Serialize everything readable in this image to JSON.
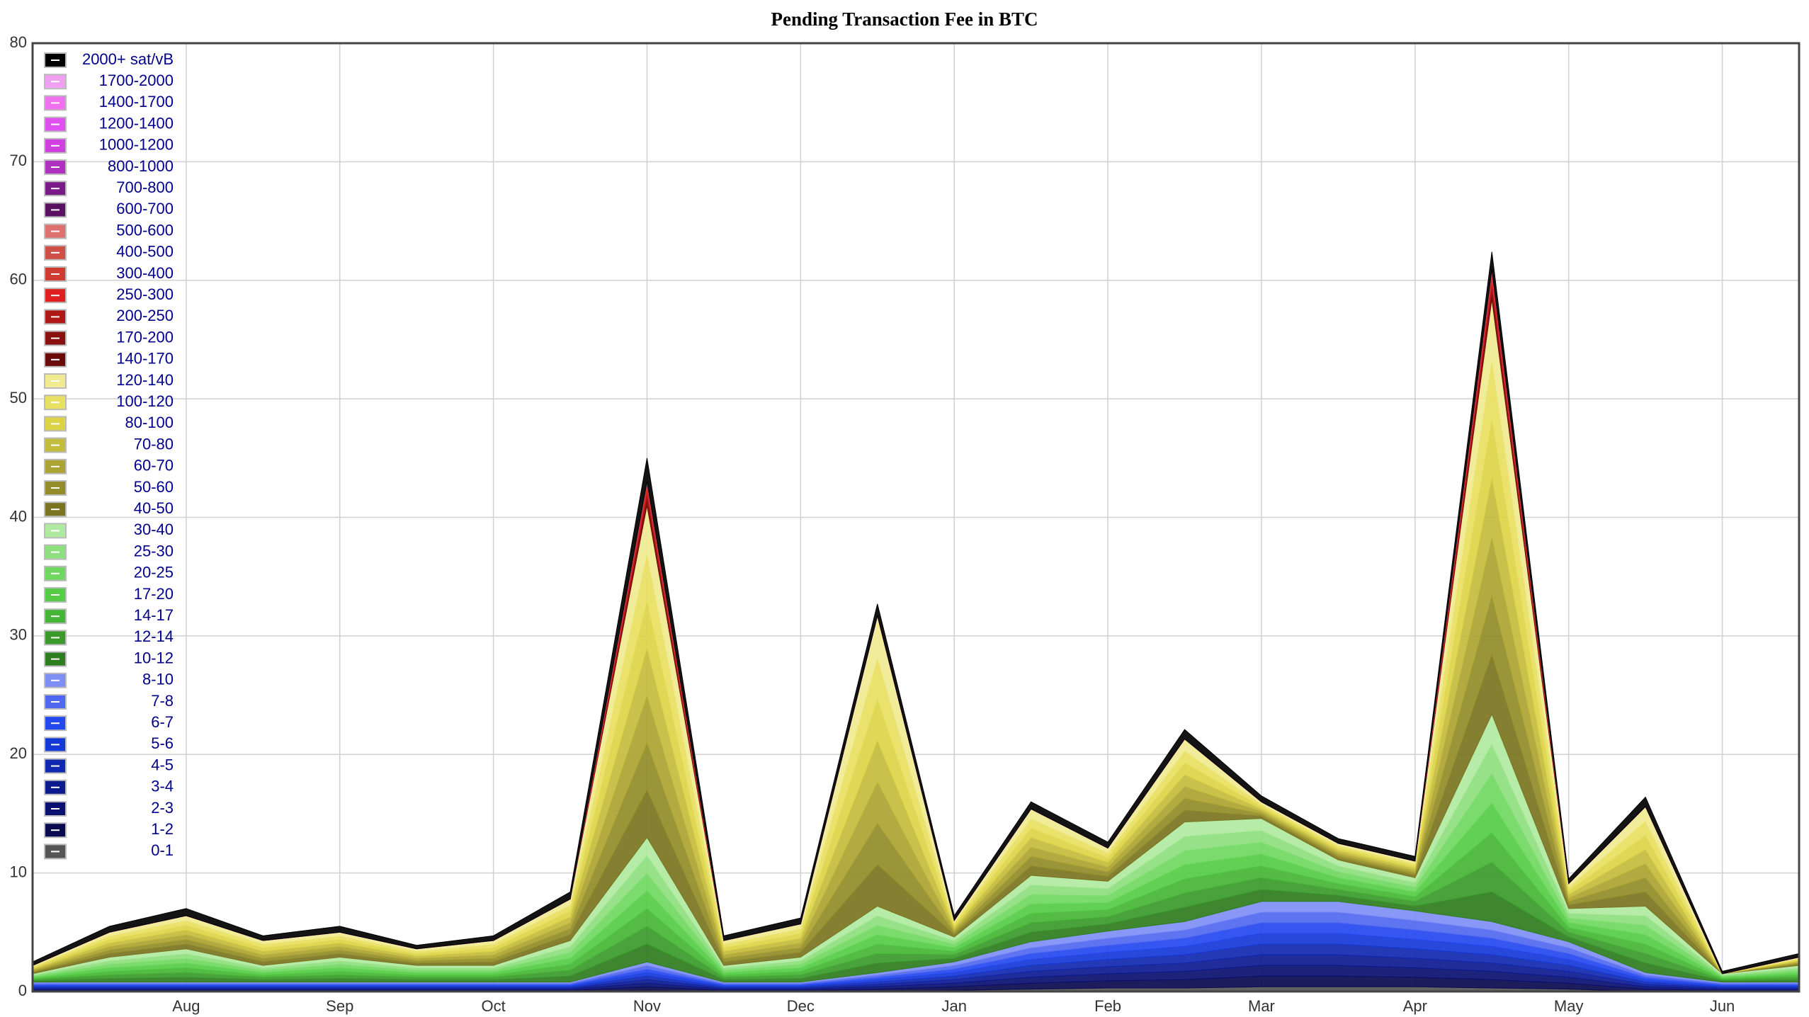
{
  "chart_data": {
    "type": "stacked-area",
    "title": "Pending Transaction Fee in BTC",
    "categories": [
      null,
      null,
      "Aug",
      null,
      "Sep",
      null,
      "Oct",
      null,
      "Nov",
      null,
      "Dec",
      null,
      "Jan",
      null,
      "Feb",
      null,
      "Mar",
      null,
      "Apr",
      null,
      "May",
      null,
      "Jun",
      null
    ],
    "ylim": [
      0,
      80
    ],
    "yticks": [
      0,
      10,
      20,
      30,
      40,
      50,
      60,
      70,
      80
    ],
    "grid": true,
    "legend": "top-left",
    "series": [
      {
        "name": "2000+ sat/vB",
        "color": "#000000",
        "values": [
          0.3,
          0.5,
          0.6,
          0.4,
          0.5,
          0.3,
          0.4,
          0.6,
          2,
          0.4,
          0.5,
          1,
          0.4,
          0.6,
          0.5,
          0.8,
          0.5,
          0.4,
          0.4,
          1.5,
          0.4,
          0.8,
          0.2,
          0.3
        ]
      },
      {
        "name": "1700-2000",
        "color": "#f0a0f0",
        "values": [
          0,
          0,
          0,
          0,
          0,
          0,
          0,
          0,
          0,
          0,
          0,
          0,
          0,
          0,
          0,
          0,
          0,
          0,
          0,
          0,
          0,
          0,
          0,
          0
        ]
      },
      {
        "name": "1400-1700",
        "color": "#f070f0",
        "values": [
          0,
          0,
          0,
          0,
          0,
          0,
          0,
          0,
          0,
          0,
          0,
          0,
          0,
          0,
          0,
          0,
          0,
          0,
          0,
          0,
          0,
          0,
          0,
          0
        ]
      },
      {
        "name": "1200-1400",
        "color": "#e050f0",
        "values": [
          0,
          0,
          0,
          0,
          0,
          0,
          0,
          0,
          0,
          0,
          0,
          0,
          0,
          0,
          0,
          0,
          0,
          0,
          0,
          0,
          0,
          0,
          0,
          0
        ]
      },
      {
        "name": "1000-1200",
        "color": "#d040e0",
        "values": [
          0,
          0,
          0,
          0,
          0,
          0,
          0,
          0,
          0,
          0,
          0,
          0,
          0,
          0,
          0,
          0,
          0,
          0,
          0,
          0,
          0,
          0,
          0,
          0
        ]
      },
      {
        "name": "800-1000",
        "color": "#b030c0",
        "values": [
          0,
          0,
          0,
          0,
          0,
          0,
          0,
          0,
          0,
          0,
          0,
          0,
          0,
          0,
          0,
          0,
          0,
          0,
          0,
          0,
          0,
          0,
          0,
          0
        ]
      },
      {
        "name": "700-800",
        "color": "#7a1a88",
        "values": [
          0,
          0,
          0,
          0,
          0,
          0,
          0,
          0,
          0,
          0,
          0,
          0,
          0,
          0,
          0,
          0,
          0,
          0,
          0,
          0,
          0,
          0,
          0,
          0
        ]
      },
      {
        "name": "600-700",
        "color": "#5a1060",
        "values": [
          0,
          0,
          0,
          0,
          0,
          0,
          0,
          0,
          0,
          0,
          0,
          0,
          0,
          0,
          0,
          0,
          0,
          0,
          0,
          0,
          0,
          0,
          0,
          0
        ]
      },
      {
        "name": "500-600",
        "color": "#e07070",
        "values": [
          0,
          0,
          0,
          0,
          0,
          0,
          0,
          0,
          0,
          0,
          0,
          0,
          0,
          0,
          0,
          0,
          0,
          0,
          0,
          0,
          0,
          0,
          0,
          0
        ]
      },
      {
        "name": "400-500",
        "color": "#d04e48",
        "values": [
          0,
          0,
          0,
          0,
          0,
          0,
          0,
          0,
          0,
          0,
          0,
          0,
          0,
          0,
          0,
          0,
          0,
          0,
          0,
          0,
          0,
          0,
          0,
          0
        ]
      },
      {
        "name": "300-400",
        "color": "#d03a30",
        "values": [
          0,
          0,
          0,
          0,
          0,
          0,
          0,
          0,
          0.4,
          0,
          0,
          0,
          0,
          0,
          0,
          0,
          0,
          0,
          0,
          0.5,
          0,
          0,
          0,
          0
        ]
      },
      {
        "name": "250-300",
        "color": "#e02020",
        "values": [
          0,
          0,
          0,
          0,
          0,
          0,
          0,
          0,
          0.4,
          0,
          0,
          0,
          0,
          0,
          0,
          0,
          0,
          0,
          0,
          0.5,
          0,
          0,
          0,
          0
        ]
      },
      {
        "name": "200-250",
        "color": "#b01818",
        "values": [
          0,
          0,
          0,
          0,
          0,
          0,
          0,
          0,
          0.4,
          0,
          0,
          0,
          0,
          0,
          0,
          0,
          0,
          0,
          0,
          0.5,
          0,
          0,
          0,
          0
        ]
      },
      {
        "name": "170-200",
        "color": "#8a1010",
        "values": [
          0,
          0,
          0,
          0,
          0,
          0,
          0,
          0,
          0.4,
          0,
          0,
          0,
          0,
          0,
          0,
          0,
          0,
          0,
          0,
          0.5,
          0,
          0,
          0,
          0
        ]
      },
      {
        "name": "140-170",
        "color": "#6a0a0a",
        "values": [
          0,
          0,
          0,
          0,
          0,
          0,
          0,
          0,
          0.4,
          0,
          0,
          0,
          0,
          0,
          0,
          0,
          0,
          0,
          0,
          0.5,
          0,
          0,
          0,
          0
        ]
      },
      {
        "name": "120-140",
        "color": "#f0ea90",
        "values": [
          0.1,
          0.3,
          0.4,
          0.3,
          0.3,
          0.2,
          0.3,
          0.5,
          4,
          0.3,
          0.4,
          3.5,
          0.2,
          0.8,
          0.4,
          1,
          0.2,
          0.2,
          0.2,
          5,
          0.3,
          1.2,
          0,
          0.1
        ]
      },
      {
        "name": "100-120",
        "color": "#e8e060",
        "values": [
          0.1,
          0.3,
          0.4,
          0.3,
          0.3,
          0.2,
          0.3,
          0.5,
          4,
          0.3,
          0.4,
          3.5,
          0.2,
          0.8,
          0.4,
          1,
          0.2,
          0.2,
          0.2,
          5,
          0.3,
          1.2,
          0,
          0.1
        ]
      },
      {
        "name": "80-100",
        "color": "#dcd446",
        "values": [
          0.1,
          0.3,
          0.4,
          0.3,
          0.3,
          0.2,
          0.3,
          0.5,
          4,
          0.3,
          0.4,
          3.5,
          0.2,
          0.8,
          0.4,
          1,
          0.2,
          0.2,
          0.2,
          5,
          0.3,
          1.2,
          0,
          0.1
        ]
      },
      {
        "name": "70-80",
        "color": "#c4bc3c",
        "values": [
          0.1,
          0.3,
          0.4,
          0.3,
          0.3,
          0.2,
          0.3,
          0.5,
          4,
          0.3,
          0.4,
          3.5,
          0.2,
          0.8,
          0.4,
          1,
          0.2,
          0.2,
          0.2,
          5,
          0.3,
          1.2,
          0,
          0.1
        ]
      },
      {
        "name": "60-70",
        "color": "#aca432",
        "values": [
          0.1,
          0.3,
          0.4,
          0.3,
          0.3,
          0.2,
          0.3,
          0.5,
          4,
          0.3,
          0.4,
          3.5,
          0.2,
          0.8,
          0.4,
          1,
          0.2,
          0.2,
          0.2,
          5,
          0.3,
          1.2,
          0,
          0.1
        ]
      },
      {
        "name": "50-60",
        "color": "#938c28",
        "values": [
          0.1,
          0.3,
          0.4,
          0.3,
          0.3,
          0.2,
          0.3,
          0.5,
          4,
          0.3,
          0.4,
          3.5,
          0.2,
          0.8,
          0.4,
          1,
          0.2,
          0.2,
          0.2,
          5,
          0.3,
          1.2,
          0,
          0.1
        ]
      },
      {
        "name": "40-50",
        "color": "#7a7420",
        "values": [
          0.1,
          0.3,
          0.4,
          0.3,
          0.3,
          0.2,
          0.3,
          0.5,
          4,
          0.3,
          0.4,
          3.5,
          0.2,
          0.8,
          0.4,
          1,
          0.2,
          0.2,
          0.2,
          5,
          0.3,
          1.2,
          0,
          0.1
        ]
      },
      {
        "name": "30-40",
        "color": "#b0eaa0",
        "values": [
          0.1,
          0.3,
          0.4,
          0.2,
          0.3,
          0.2,
          0.2,
          0.5,
          1.5,
          0.2,
          0.3,
          0.8,
          0.3,
          0.8,
          0.6,
          1.2,
          1,
          0.5,
          0.4,
          2.5,
          0.4,
          0.8,
          0.1,
          0.2
        ]
      },
      {
        "name": "25-30",
        "color": "#8ee07e",
        "values": [
          0.1,
          0.3,
          0.4,
          0.2,
          0.3,
          0.2,
          0.2,
          0.5,
          1.5,
          0.2,
          0.3,
          0.8,
          0.3,
          0.8,
          0.6,
          1.2,
          1,
          0.5,
          0.4,
          2.5,
          0.4,
          0.8,
          0.1,
          0.2
        ]
      },
      {
        "name": "20-25",
        "color": "#70d860",
        "values": [
          0.1,
          0.3,
          0.4,
          0.2,
          0.3,
          0.2,
          0.2,
          0.5,
          1.5,
          0.2,
          0.3,
          0.8,
          0.3,
          0.8,
          0.6,
          1.2,
          1,
          0.5,
          0.4,
          2.5,
          0.4,
          0.8,
          0.1,
          0.2
        ]
      },
      {
        "name": "17-20",
        "color": "#55cc45",
        "values": [
          0.1,
          0.3,
          0.4,
          0.2,
          0.3,
          0.2,
          0.2,
          0.5,
          1.5,
          0.2,
          0.3,
          0.8,
          0.3,
          0.8,
          0.6,
          1.2,
          1,
          0.5,
          0.4,
          2.5,
          0.4,
          0.8,
          0.1,
          0.2
        ]
      },
      {
        "name": "14-17",
        "color": "#45b535",
        "values": [
          0.1,
          0.3,
          0.4,
          0.2,
          0.3,
          0.2,
          0.2,
          0.5,
          1.5,
          0.2,
          0.3,
          0.8,
          0.3,
          0.8,
          0.6,
          1.2,
          1,
          0.5,
          0.4,
          2.5,
          0.4,
          0.8,
          0.1,
          0.2
        ]
      },
      {
        "name": "12-14",
        "color": "#3a9a2a",
        "values": [
          0.1,
          0.3,
          0.4,
          0.2,
          0.3,
          0.2,
          0.2,
          0.5,
          1.5,
          0.2,
          0.3,
          0.8,
          0.3,
          0.8,
          0.6,
          1.2,
          1,
          0.5,
          0.4,
          2.5,
          0.4,
          0.8,
          0.1,
          0.2
        ]
      },
      {
        "name": "10-12",
        "color": "#2e7d1e",
        "values": [
          0.1,
          0.3,
          0.4,
          0.2,
          0.3,
          0.2,
          0.2,
          0.5,
          1.5,
          0.2,
          0.3,
          0.8,
          0.3,
          0.8,
          0.6,
          1.2,
          1,
          0.5,
          0.4,
          2.5,
          0.4,
          0.8,
          0.1,
          0.2
        ]
      },
      {
        "name": "8-10",
        "color": "#7f8ef5",
        "values": [
          0.1,
          0.1,
          0.1,
          0.1,
          0.1,
          0.1,
          0.1,
          0.1,
          0.3,
          0.1,
          0.1,
          0.2,
          0.3,
          0.5,
          0.6,
          0.7,
          0.9,
          0.9,
          0.8,
          0.7,
          0.5,
          0.2,
          0.1,
          0.1
        ]
      },
      {
        "name": "7-8",
        "color": "#5068f0",
        "values": [
          0.1,
          0.1,
          0.1,
          0.1,
          0.1,
          0.1,
          0.1,
          0.1,
          0.3,
          0.1,
          0.1,
          0.2,
          0.3,
          0.5,
          0.6,
          0.7,
          0.9,
          0.9,
          0.8,
          0.7,
          0.5,
          0.2,
          0.1,
          0.1
        ]
      },
      {
        "name": "6-7",
        "color": "#2448f0",
        "values": [
          0.1,
          0.1,
          0.1,
          0.1,
          0.1,
          0.1,
          0.1,
          0.1,
          0.3,
          0.1,
          0.1,
          0.2,
          0.3,
          0.5,
          0.6,
          0.7,
          0.9,
          0.9,
          0.8,
          0.7,
          0.5,
          0.2,
          0.1,
          0.1
        ]
      },
      {
        "name": "5-6",
        "color": "#1538d8",
        "values": [
          0.1,
          0.1,
          0.1,
          0.1,
          0.1,
          0.1,
          0.1,
          0.1,
          0.3,
          0.1,
          0.1,
          0.2,
          0.3,
          0.5,
          0.6,
          0.7,
          0.9,
          0.9,
          0.8,
          0.7,
          0.5,
          0.2,
          0.1,
          0.1
        ]
      },
      {
        "name": "4-5",
        "color": "#1028b0",
        "values": [
          0.1,
          0.1,
          0.1,
          0.1,
          0.1,
          0.1,
          0.1,
          0.1,
          0.3,
          0.1,
          0.1,
          0.2,
          0.3,
          0.5,
          0.6,
          0.7,
          0.9,
          0.9,
          0.8,
          0.7,
          0.5,
          0.2,
          0.1,
          0.1
        ]
      },
      {
        "name": "3-4",
        "color": "#0c1a90",
        "values": [
          0.1,
          0.1,
          0.1,
          0.1,
          0.1,
          0.1,
          0.1,
          0.1,
          0.3,
          0.1,
          0.1,
          0.2,
          0.3,
          0.5,
          0.6,
          0.7,
          0.9,
          0.9,
          0.8,
          0.7,
          0.5,
          0.2,
          0.1,
          0.1
        ]
      },
      {
        "name": "2-3",
        "color": "#0a1070",
        "values": [
          0.1,
          0.1,
          0.1,
          0.1,
          0.1,
          0.1,
          0.1,
          0.1,
          0.3,
          0.1,
          0.1,
          0.2,
          0.3,
          0.5,
          0.6,
          0.7,
          0.9,
          0.9,
          0.8,
          0.7,
          0.5,
          0.2,
          0.1,
          0.1
        ]
      },
      {
        "name": "1-2",
        "color": "#0a0a50",
        "values": [
          0.1,
          0.1,
          0.1,
          0.1,
          0.1,
          0.1,
          0.1,
          0.1,
          0.3,
          0.1,
          0.1,
          0.2,
          0.3,
          0.5,
          0.6,
          0.7,
          0.9,
          0.9,
          0.8,
          0.7,
          0.5,
          0.2,
          0.1,
          0.1
        ]
      },
      {
        "name": "0-1",
        "color": "#555555",
        "values": [
          0,
          0,
          0,
          0,
          0,
          0,
          0,
          0,
          0.1,
          0,
          0,
          0,
          0.1,
          0.2,
          0.3,
          0.3,
          0.4,
          0.4,
          0.4,
          0.3,
          0.2,
          0,
          0,
          0
        ]
      }
    ]
  }
}
